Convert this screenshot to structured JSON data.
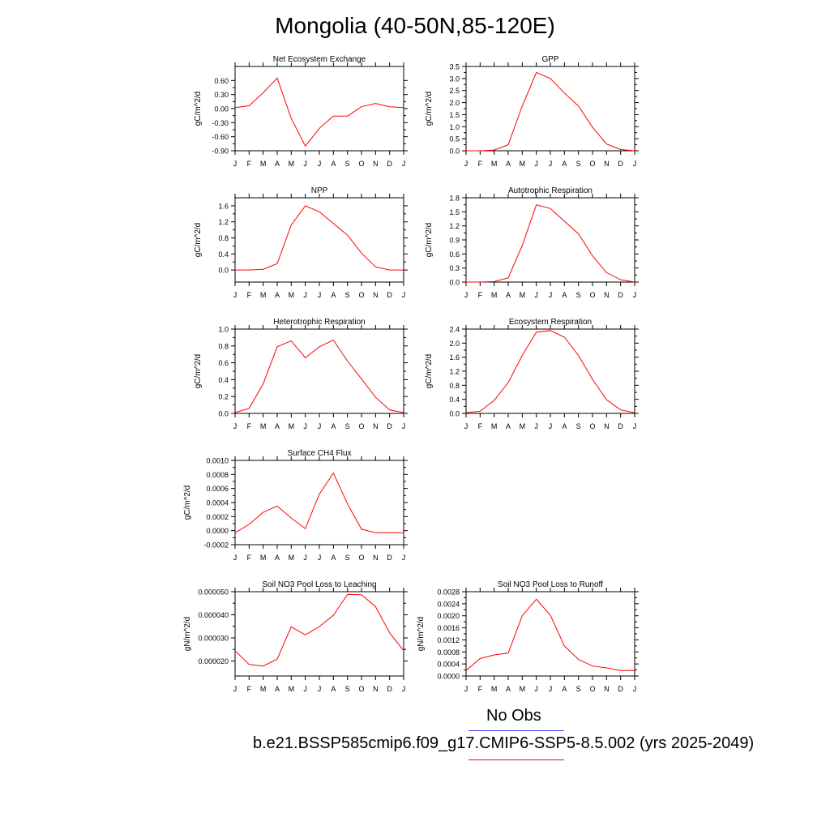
{
  "title": "Mongolia (40-50N,85-120E)",
  "legend": {
    "obs_label": "No Obs",
    "obs_color": "#3a3aff",
    "model_label": "b.e21.BSSP585cmip6.f09_g17.CMIP6-SSP5-8.5.002 (yrs 2025-2049)",
    "model_color": "#ff0000"
  },
  "chart_data": [
    {
      "type": "line",
      "title": "Net Ecosystem Exchange",
      "ylabel": "gC/m^2/d",
      "x": [
        "J",
        "F",
        "M",
        "A",
        "M",
        "J",
        "J",
        "A",
        "S",
        "O",
        "N",
        "D",
        "J"
      ],
      "ylim": [
        -0.9,
        0.9
      ],
      "yticks": [
        -0.9,
        -0.6,
        -0.3,
        0.0,
        0.3,
        0.6
      ],
      "ytick_labels": [
        "-0.90",
        "-0.60",
        "-0.30",
        "0.00",
        "0.30",
        "0.60"
      ],
      "series": [
        {
          "values": [
            0.02,
            0.06,
            0.34,
            0.65,
            -0.21,
            -0.8,
            -0.42,
            -0.16,
            -0.16,
            0.04,
            0.11,
            0.04,
            0.02
          ]
        }
      ]
    },
    {
      "type": "line",
      "title": "GPP",
      "ylabel": "gC/m^2/d",
      "x": [
        "J",
        "F",
        "M",
        "A",
        "M",
        "J",
        "J",
        "A",
        "S",
        "O",
        "N",
        "D",
        "J"
      ],
      "ylim": [
        0.0,
        3.5
      ],
      "yticks": [
        0.0,
        0.5,
        1.0,
        1.5,
        2.0,
        2.5,
        3.0,
        3.5
      ],
      "ytick_labels": [
        "0.0",
        "0.5",
        "1.0",
        "1.5",
        "2.0",
        "2.5",
        "3.0",
        "3.5"
      ],
      "series": [
        {
          "values": [
            0.0,
            0.0,
            0.03,
            0.25,
            1.85,
            3.25,
            3.0,
            2.4,
            1.85,
            0.98,
            0.28,
            0.05,
            0.0
          ]
        }
      ]
    },
    {
      "type": "line",
      "title": "NPP",
      "ylabel": "gC/m^2/d",
      "x": [
        "J",
        "F",
        "M",
        "A",
        "M",
        "J",
        "J",
        "A",
        "S",
        "O",
        "N",
        "D",
        "J"
      ],
      "ylim": [
        -0.3,
        1.8
      ],
      "yticks": [
        0.0,
        0.4,
        0.8,
        1.2,
        1.6
      ],
      "ytick_labels": [
        "0.0",
        "0.4",
        "0.8",
        "1.2",
        "1.6"
      ],
      "series": [
        {
          "values": [
            0.0,
            0.0,
            0.02,
            0.16,
            1.12,
            1.6,
            1.45,
            1.16,
            0.87,
            0.42,
            0.08,
            0.0,
            0.0
          ]
        }
      ]
    },
    {
      "type": "line",
      "title": "Autotrophic Respiration",
      "ylabel": "gC/m^2/d",
      "x": [
        "J",
        "F",
        "M",
        "A",
        "M",
        "J",
        "J",
        "A",
        "S",
        "O",
        "N",
        "D",
        "J"
      ],
      "ylim": [
        0.0,
        1.8
      ],
      "yticks": [
        0.0,
        0.3,
        0.6,
        0.9,
        1.2,
        1.5,
        1.8
      ],
      "ytick_labels": [
        "0.0",
        "0.3",
        "0.6",
        "0.9",
        "1.2",
        "1.5",
        "1.8"
      ],
      "series": [
        {
          "values": [
            0.0,
            0.0,
            0.01,
            0.09,
            0.78,
            1.65,
            1.57,
            1.3,
            1.03,
            0.56,
            0.2,
            0.05,
            0.0
          ]
        }
      ]
    },
    {
      "type": "line",
      "title": "Heterotrophic Respiration",
      "ylabel": "gC/m^2/d",
      "x": [
        "J",
        "F",
        "M",
        "A",
        "M",
        "J",
        "J",
        "A",
        "S",
        "O",
        "N",
        "D",
        "J"
      ],
      "ylim": [
        0.0,
        1.0
      ],
      "yticks": [
        0.0,
        0.2,
        0.4,
        0.6,
        0.8,
        1.0
      ],
      "ytick_labels": [
        "0.0",
        "0.2",
        "0.4",
        "0.6",
        "0.8",
        "1.0"
      ],
      "series": [
        {
          "values": [
            0.01,
            0.06,
            0.35,
            0.79,
            0.86,
            0.66,
            0.79,
            0.87,
            0.62,
            0.41,
            0.19,
            0.04,
            0.01
          ]
        }
      ]
    },
    {
      "type": "line",
      "title": "Ecosystem Respiration",
      "ylabel": "gC/m^2/d",
      "x": [
        "J",
        "F",
        "M",
        "A",
        "M",
        "J",
        "J",
        "A",
        "S",
        "O",
        "N",
        "D",
        "J"
      ],
      "ylim": [
        0.0,
        2.4
      ],
      "yticks": [
        0.0,
        0.4,
        0.8,
        1.2,
        1.6,
        2.0,
        2.4
      ],
      "ytick_labels": [
        "0.0",
        "0.4",
        "0.8",
        "1.2",
        "1.6",
        "2.0",
        "2.4"
      ],
      "series": [
        {
          "values": [
            0.02,
            0.06,
            0.37,
            0.88,
            1.65,
            2.31,
            2.36,
            2.17,
            1.65,
            0.97,
            0.39,
            0.1,
            0.02
          ]
        }
      ]
    },
    {
      "type": "line",
      "title": "Surface CH4 Flux",
      "ylabel": "gC/m^2/d",
      "x": [
        "J",
        "F",
        "M",
        "A",
        "M",
        "J",
        "J",
        "A",
        "S",
        "O",
        "N",
        "D",
        "J"
      ],
      "ylim": [
        -0.0002,
        0.001
      ],
      "yticks": [
        -0.0002,
        0.0,
        0.0002,
        0.0004,
        0.0006,
        0.0008,
        0.001
      ],
      "ytick_labels": [
        "-0.0002",
        "0.0000",
        "0.0002",
        "0.0004",
        "0.0006",
        "0.0008",
        "0.0010"
      ],
      "series": [
        {
          "values": [
            -3e-05,
            9e-05,
            0.00026,
            0.00035,
            0.00018,
            3e-05,
            0.00052,
            0.00082,
            0.00038,
            2e-05,
            -3e-05,
            -3e-05,
            -3e-05
          ]
        }
      ]
    },
    {
      "type": "line",
      "title": "Soil NO3 Pool Loss to Leaching",
      "ylabel": "gN/m^2/d",
      "x": [
        "J",
        "F",
        "M",
        "A",
        "M",
        "J",
        "J",
        "A",
        "S",
        "O",
        "N",
        "D",
        "J"
      ],
      "ylim": [
        1.35e-05,
        5e-05
      ],
      "yticks": [
        2e-05,
        3e-05,
        4e-05,
        5e-05
      ],
      "ytick_labels": [
        "0.000020",
        "0.000030",
        "0.000040",
        "0.000050"
      ],
      "series": [
        {
          "values": [
            2.45e-05,
            1.85e-05,
            1.78e-05,
            2.08e-05,
            3.48e-05,
            3.13e-05,
            3.49e-05,
            3.98e-05,
            4.88e-05,
            4.87e-05,
            4.35e-05,
            3.22e-05,
            2.45e-05
          ]
        }
      ]
    },
    {
      "type": "line",
      "title": "Soil NO3 Pool Loss to Runoff",
      "ylabel": "gN/m^2/d",
      "x": [
        "J",
        "F",
        "M",
        "A",
        "M",
        "J",
        "J",
        "A",
        "S",
        "O",
        "N",
        "D",
        "J"
      ],
      "ylim": [
        0.0,
        0.0028
      ],
      "yticks": [
        0.0,
        0.0004,
        0.0008,
        0.0012,
        0.0016,
        0.002,
        0.0024,
        0.0028
      ],
      "ytick_labels": [
        "0.0000",
        "0.0004",
        "0.0008",
        "0.0012",
        "0.0016",
        "0.0020",
        "0.0024",
        "0.0028"
      ],
      "series": [
        {
          "values": [
            0.00018,
            0.00058,
            0.0007,
            0.00076,
            0.002,
            0.00255,
            0.00202,
            0.001,
            0.00055,
            0.00033,
            0.00027,
            0.00018,
            0.00018
          ]
        }
      ]
    }
  ]
}
